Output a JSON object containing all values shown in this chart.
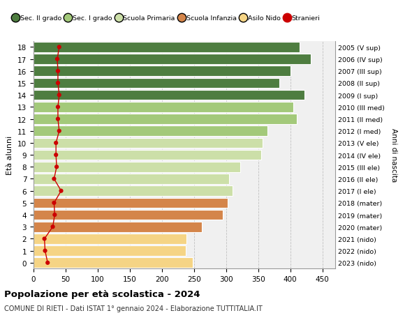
{
  "ages": [
    0,
    1,
    2,
    3,
    4,
    5,
    6,
    7,
    8,
    9,
    10,
    11,
    12,
    13,
    14,
    15,
    16,
    17,
    18
  ],
  "bar_values": [
    248,
    237,
    238,
    262,
    295,
    302,
    310,
    305,
    322,
    355,
    357,
    365,
    410,
    405,
    422,
    383,
    400,
    432,
    415
  ],
  "bar_colors": [
    "#f5d485",
    "#f5d485",
    "#f5d485",
    "#d4854a",
    "#d4854a",
    "#d4854a",
    "#ccdfa8",
    "#ccdfa8",
    "#ccdfa8",
    "#ccdfa8",
    "#ccdfa8",
    "#a3c97a",
    "#a3c97a",
    "#a3c97a",
    "#4e7d40",
    "#4e7d40",
    "#4e7d40",
    "#4e7d40",
    "#4e7d40"
  ],
  "stranieri": [
    22,
    18,
    17,
    30,
    33,
    32,
    43,
    32,
    36,
    35,
    35,
    40,
    38,
    38,
    40,
    38,
    38,
    37,
    40
  ],
  "right_labels": [
    "2023 (nido)",
    "2022 (nido)",
    "2021 (nido)",
    "2020 (mater)",
    "2019 (mater)",
    "2018 (mater)",
    "2017 (I ele)",
    "2016 (II ele)",
    "2015 (III ele)",
    "2014 (IV ele)",
    "2013 (V ele)",
    "2012 (I med)",
    "2011 (II med)",
    "2010 (III med)",
    "2009 (I sup)",
    "2008 (II sup)",
    "2007 (III sup)",
    "2006 (IV sup)",
    "2005 (V sup)"
  ],
  "legend_labels": [
    "Sec. II grado",
    "Sec. I grado",
    "Scuola Primaria",
    "Scuola Infanzia",
    "Asilo Nido",
    "Stranieri"
  ],
  "legend_colors": [
    "#4e7d40",
    "#a3c97a",
    "#ccdfa8",
    "#d4854a",
    "#f5d485",
    "#cc0000"
  ],
  "ylabel": "Età alunni",
  "right_ylabel": "Anni di nascita",
  "title": "Popolazione per età scolastica - 2024",
  "subtitle": "COMUNE DI RIETI - Dati ISTAT 1° gennaio 2024 - Elaborazione TUTTITALIA.IT",
  "xlim": [
    0,
    470
  ],
  "xticks": [
    0,
    50,
    100,
    150,
    200,
    250,
    300,
    350,
    400,
    450
  ],
  "bg_color": "#f0f0f0",
  "bar_height": 0.85,
  "grid_color": "#bbbbbb",
  "stranieri_color": "#cc0000"
}
